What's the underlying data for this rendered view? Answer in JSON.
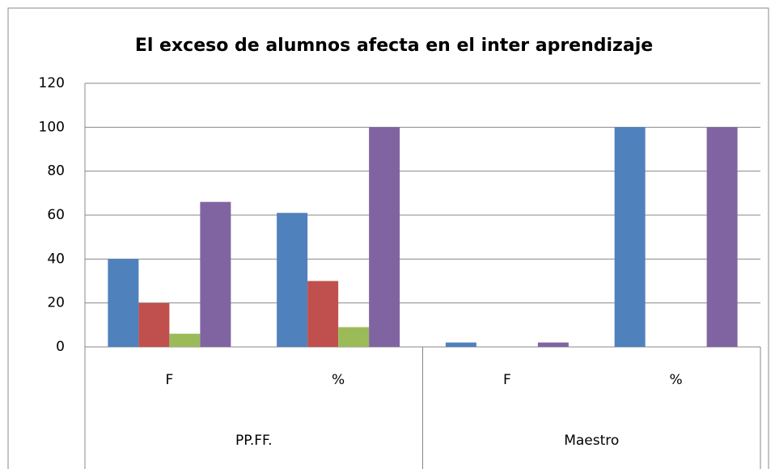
{
  "chart_data": {
    "type": "bar",
    "title": "El exceso de alumnos  afecta en el inter aprendizaje",
    "categories": [
      "F",
      "%",
      "F",
      "%"
    ],
    "group_labels": [
      "PP.FF.",
      "Maestro"
    ],
    "series": [
      {
        "color": "#4f81bd",
        "values": [
          40,
          61,
          2,
          100
        ]
      },
      {
        "color": "#c0504d",
        "values": [
          20,
          30,
          0,
          0
        ]
      },
      {
        "color": "#9bbb59",
        "values": [
          6,
          9,
          0,
          0
        ]
      },
      {
        "color": "#8064a2",
        "values": [
          66,
          100,
          2,
          100
        ]
      }
    ],
    "ylim": [
      0,
      120
    ],
    "yticks": [
      0,
      20,
      40,
      60,
      80,
      100,
      120
    ],
    "grid": true
  }
}
